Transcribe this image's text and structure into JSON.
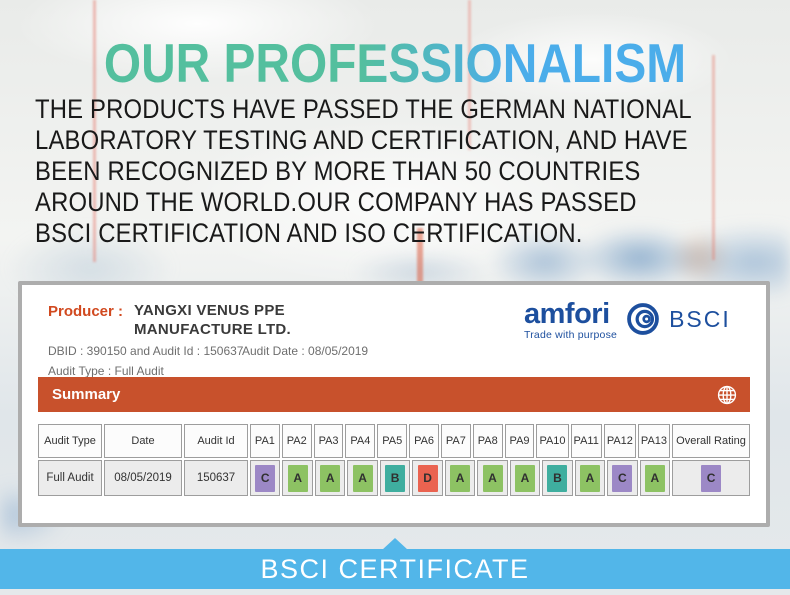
{
  "header": {
    "title": "OUR PROFESSIONALISM"
  },
  "intro": {
    "lines": [
      "THE PRODUCTS HAVE PASSED THE GERMAN NATIONAL",
      "LABORATORY TESTING AND CERTIFICATION, AND HAVE",
      "BEEN RECOGNIZED BY MORE THAN 50 COUNTRIES",
      "AROUND THE WORLD.OUR COMPANY HAS PASSED",
      "BSCI CERTIFICATION AND ISO CERTIFICATION."
    ]
  },
  "certificate": {
    "producer_label": "Producer :",
    "producer_name_lines": [
      "YANGXI VENUS PPE",
      "MANUFACTURE LTD."
    ],
    "dbid_line": "DBID : 390150 and Audit Id : 150637",
    "audit_date_line": "Audit Date : 08/05/2019",
    "audit_type_line": "Audit Type : Full Audit",
    "logo": {
      "wordmark": "amfori",
      "tagline": "Trade with purpose",
      "suffix": "BSCI"
    },
    "summary": {
      "label": "Summary",
      "icon": "globe-icon"
    },
    "table": {
      "headers": [
        "Audit Type",
        "Date",
        "Audit Id",
        "PA1",
        "PA2",
        "PA3",
        "PA4",
        "PA5",
        "PA6",
        "PA7",
        "PA8",
        "PA9",
        "PA10",
        "PA11",
        "PA12",
        "PA13",
        "Overall Rating"
      ],
      "row": {
        "audit_type": "Full Audit",
        "date": "08/05/2019",
        "audit_id": "150637",
        "pa_grades": [
          "C",
          "A",
          "A",
          "A",
          "B",
          "D",
          "A",
          "A",
          "A",
          "B",
          "A",
          "C",
          "A"
        ],
        "overall_grade": "C"
      }
    }
  },
  "banner": {
    "label": "BSCI CERTIFICATE"
  },
  "icons": {
    "summary_right": "globe-icon",
    "logo_mark": "amfori-rose-icon",
    "banner_pointer": "triangle-up"
  },
  "colors": {
    "title_gradient_start": "#54bf9e",
    "title_gradient_end": "#4badea",
    "producer_accent": "#d1491f",
    "summary_bar": "#c8512c",
    "amfori_blue": "#1d4f9e",
    "banner_blue": "#52b6e9",
    "grade_colors": {
      "A": "#8dc263",
      "B": "#3fae9f",
      "C": "#9c88c6",
      "D": "#ea6350"
    }
  }
}
